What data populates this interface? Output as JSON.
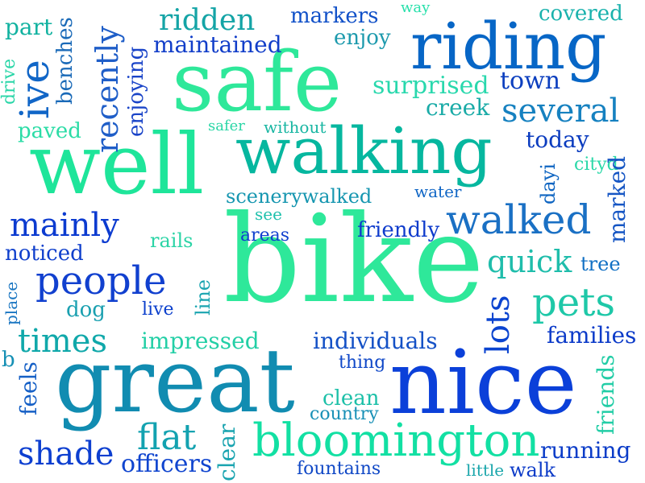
{
  "words": {
    "bike": "bike",
    "great": "great",
    "nice": "nice",
    "well": "well",
    "safe": "safe",
    "walking": "walking",
    "riding": "riding",
    "bloomington": "bloomington",
    "walked": "walked",
    "people": "people",
    "pets": "pets",
    "mainly": "mainly",
    "several": "several",
    "ive": "ive",
    "recently": "recently",
    "times": "times",
    "shade": "shade",
    "flat": "flat",
    "lots": "lots",
    "quick": "quick",
    "officers": "officers",
    "ridden": "ridden",
    "markers": "markers",
    "enjoy": "enjoy",
    "covered": "covered",
    "way": "way",
    "part": "part",
    "benches": "benches",
    "drive": "drive",
    "maintained": "maintained",
    "enjoying": "enjoying",
    "surprised": "surprised",
    "town": "town",
    "creek": "creek",
    "paved": "paved",
    "safer": "safer",
    "without": "without",
    "today": "today",
    "cityd": "cityd",
    "dayi": "dayi",
    "marked": "marked",
    "scenerywalked": "scenerywalked",
    "water": "water",
    "see": "see",
    "areas": "areas",
    "friendly": "friendly",
    "rails": "rails",
    "noticed": "noticed",
    "tree": "tree",
    "place": "place",
    "line": "line",
    "dog": "dog",
    "live": "live",
    "impressed": "impressed",
    "individuals": "individuals",
    "families": "families",
    "b": "b",
    "thing": "thing",
    "feels": "feels",
    "clean": "clean",
    "country": "country",
    "friends": "friends",
    "clear": "clear",
    "running": "running",
    "fountains": "fountains",
    "little": "little",
    "walk": "walk"
  }
}
